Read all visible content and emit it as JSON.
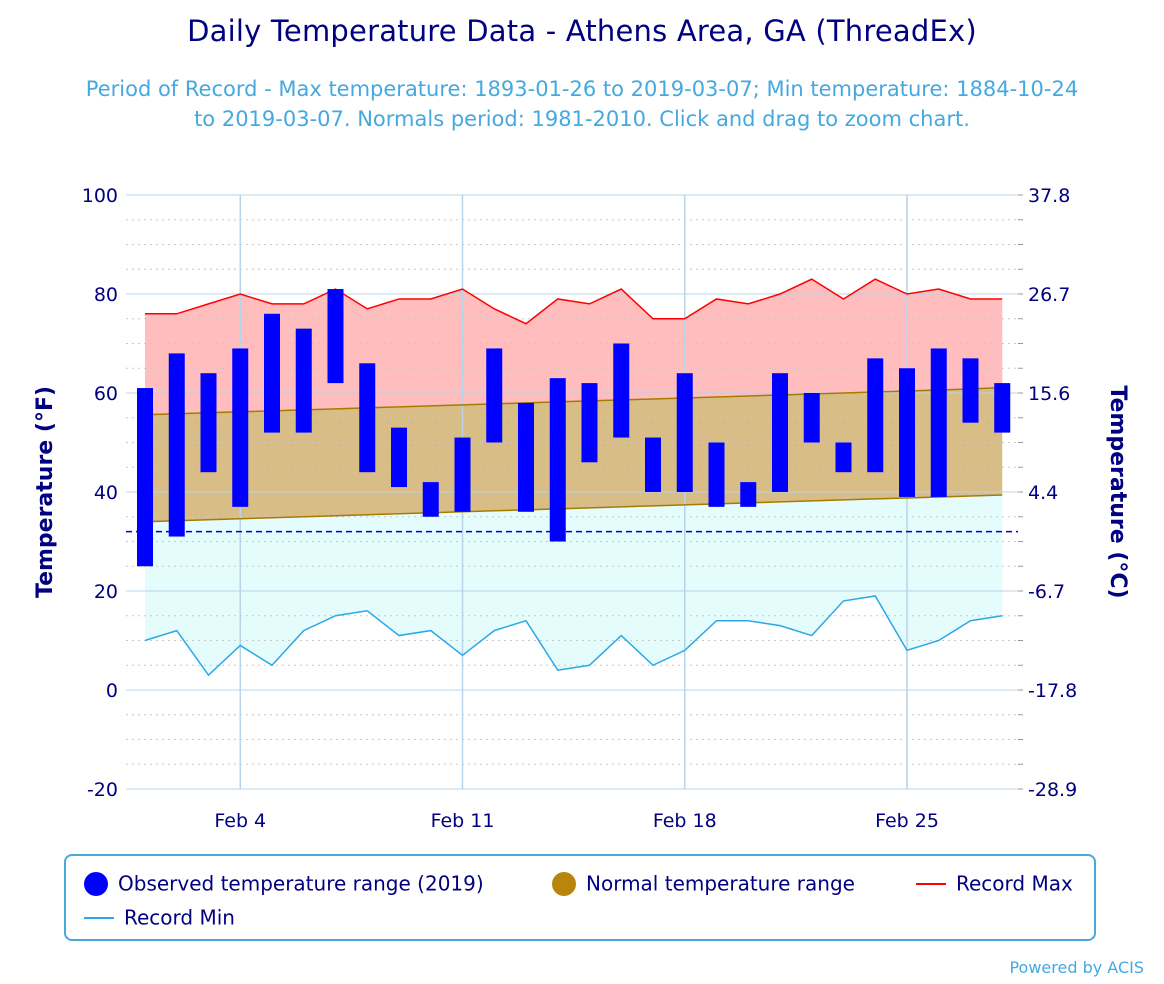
{
  "title": "Daily Temperature Data - Athens Area, GA (ThreadEx)",
  "subtitle": "Period of Record - Max temperature: 1893-01-26 to 2019-03-07; Min temperature: 1884-10-24 to 2019-03-07. Normals period: 1981-2010. Click and drag to zoom chart.",
  "credits": "Powered by ACIS",
  "legend": {
    "observed": "Observed temperature range (2019)",
    "normal": "Normal temperature range",
    "record_max": "Record Max",
    "record_min": "Record Min"
  },
  "colors": {
    "observed": "#0000ff",
    "normal_fill": "#d9bd86",
    "normal_swatch": "#b8860b",
    "normal_line": "#a67c00",
    "record_max": "#ff0000",
    "record_max_fill": "#ffbdbd",
    "record_min": "#2aa8e6",
    "record_min_fill": "#e4fcfc",
    "freezing_line": "#0000dd",
    "axis_text": "#000080",
    "grid_major": "#b8d4ea"
  },
  "chart_data": {
    "type": "bar",
    "xlabel": "",
    "ylabel": "Temperature (°F)",
    "ylabel_right": "Temperature (°C)",
    "ylim": [
      -20,
      100
    ],
    "y_ticks": [
      "-20",
      "0",
      "20",
      "40",
      "60",
      "80",
      "100"
    ],
    "y_ticks_right": [
      "-28.9",
      "-17.8",
      "-6.7",
      "4.4",
      "15.6",
      "26.7",
      "37.8"
    ],
    "x_start_day": 1,
    "x_ticks": [
      {
        "day": 4,
        "label": "Feb 4"
      },
      {
        "day": 11,
        "label": "Feb 11"
      },
      {
        "day": 18,
        "label": "Feb 18"
      },
      {
        "day": 25,
        "label": "Feb 25"
      }
    ],
    "freezing_line": 32,
    "observed": {
      "name": "Observed temperature range (2019)",
      "low": [
        25,
        31,
        44,
        37,
        52,
        52,
        62,
        44,
        41,
        35,
        36,
        50,
        36,
        30,
        46,
        51,
        40,
        40,
        37,
        37,
        40,
        50,
        44,
        44,
        39,
        39,
        54,
        52
      ],
      "high": [
        61,
        68,
        64,
        69,
        76,
        73,
        81,
        66,
        53,
        42,
        51,
        69,
        58,
        63,
        62,
        70,
        51,
        64,
        50,
        42,
        64,
        60,
        50,
        67,
        65,
        69,
        67,
        62
      ]
    },
    "normal": {
      "name": "Normal temperature range",
      "low": [
        34.0,
        34.2,
        34.4,
        34.6,
        34.8,
        35.0,
        35.2,
        35.4,
        35.6,
        35.8,
        36.0,
        36.2,
        36.4,
        36.6,
        36.8,
        37.0,
        37.2,
        37.4,
        37.6,
        37.8,
        38.0,
        38.2,
        38.4,
        38.6,
        38.8,
        39.0,
        39.2,
        39.4
      ],
      "high": [
        55.6,
        55.8,
        56.0,
        56.2,
        56.4,
        56.6,
        56.8,
        57.0,
        57.2,
        57.4,
        57.6,
        57.8,
        58.0,
        58.2,
        58.4,
        58.6,
        58.8,
        59.0,
        59.2,
        59.4,
        59.6,
        59.8,
        60.0,
        60.2,
        60.4,
        60.6,
        60.8,
        61.1
      ]
    },
    "record_max": {
      "name": "Record Max",
      "values": [
        76,
        76,
        78,
        80,
        78,
        78,
        81,
        77,
        79,
        79,
        81,
        77,
        74,
        79,
        78,
        81,
        75,
        75,
        79,
        78,
        80,
        83,
        79,
        83,
        80,
        81,
        79,
        79
      ]
    },
    "record_min": {
      "name": "Record Min",
      "values": [
        10,
        12,
        3,
        9,
        5,
        12,
        15,
        16,
        11,
        12,
        7,
        12,
        14,
        4,
        5,
        11,
        5,
        8,
        14,
        14,
        13,
        11,
        18,
        19,
        8,
        10,
        14,
        15
      ]
    }
  }
}
